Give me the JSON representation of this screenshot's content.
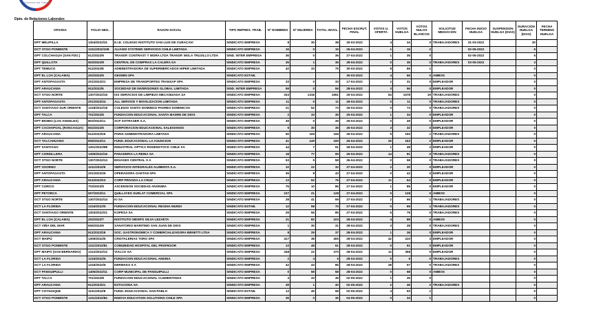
{
  "header": {
    "logo_text": "Dirección del Trabajo",
    "department": "Dpto. de Relaciones Laborales",
    "logo_colors": {
      "blue": "#2a4a9a",
      "red": "#d52b1e"
    }
  },
  "table": {
    "columns": [
      "OFICINA",
      "FOLIO NEG.",
      "RAZON SOCIAL",
      "TIPO REPRES. TRAB.",
      "Nº HOMBRES",
      "Nº MUJERES",
      "TOTAL INVOL.",
      "FECHA ESCRUT. FINAL",
      "VOTOS U. OFERTA",
      "VOTOS HUELGA",
      "VOTOS NULOS BLANCOS",
      "SOLICITUD MEDIACION",
      "FECHA INICIO HUELGA",
      "SUSPENSION HUELGA (DIAS)",
      "DURACION HUELGA (DIAS)",
      "FECHA TERMINO HUELGA"
    ],
    "rows": [
      [
        "DPT MELIPILLA",
        "1304/2022/31",
        "E.I.E. COLEGIO INSTITUTO SAN LUIS DE CURACAVI",
        "SINDICATO EMPRESA",
        "8",
        "30",
        "38",
        "30-03-2022",
        "4",
        "34",
        "0",
        "TRABAJADORES",
        "31-03-2022",
        "",
        "30",
        ""
      ],
      [
        "DCT STGO PONIENTE",
        "1311/2022/108",
        "ALIANSI SYSTEMS SERVICIOS CHILE LIMITADA",
        "SINDICATO EMPRESA",
        "16",
        "0",
        "16",
        "26-04-2022",
        "1",
        "15",
        "2",
        "",
        "02-05-2022",
        "",
        "6",
        ""
      ],
      [
        "DPT COLCHAGUA (SAN FDO.)",
        "612/2022/6",
        "TRANSP. CONTRAST Y MORA LTDA TRANSP. MOLA TRUJILLO LTDA",
        "SIND. INTER EMPRESA",
        "36",
        "0",
        "36",
        "27-04-2022",
        "1",
        "35",
        "0",
        "",
        "02-05-2022",
        "",
        "6",
        ""
      ],
      [
        "DPT QUILLOTA",
        "503/2022/8",
        "CENTRAL DE COMPRAS LA CALERA SA",
        "SINDICATO EMPRESA",
        "35",
        "1",
        "36",
        "28-04-2022",
        "0",
        "36",
        "0",
        "TRABAJADORES",
        "03-05-2022",
        "",
        "3",
        ""
      ],
      [
        "DPT TEMUCO",
        "911/2022/8",
        "ADMINISTRADORA DE SUPERMERCADOS HIPER LIMITADA",
        "SINDICATO EMPRESA",
        "42",
        "33",
        "75",
        "30-03-2022",
        "8",
        "66",
        "1",
        "",
        "",
        "",
        "0",
        ""
      ],
      [
        "DPT EL LOA (CALAMA)",
        "202/2022/6",
        "GEOMIN SPA",
        "SINDICATO ESTAB.",
        "",
        "",
        "",
        "30-03-2022",
        "4",
        "66",
        "0",
        "AMBOS",
        "",
        "",
        "0",
        ""
      ],
      [
        "DPT ANTOFAGASTA",
        "201/2022/21",
        "EMPRESA DE TRANSPORTES TRANSAP SPA",
        "SINDICATO EMPRESA",
        "33",
        "0",
        "33",
        "17-04-2022",
        "2",
        "31",
        "0",
        "EMPLEADOR",
        "",
        "",
        "0",
        ""
      ],
      [
        "DPT ARAUCANIA",
        "911/2022/6",
        "SOCIEDAD DE INVERSIONES GLOBAL LIMITADA",
        "SIND. INTER EMPRESA",
        "59",
        "0",
        "59",
        "28-04-2022",
        "3",
        "56",
        "0",
        "EMPLEADOR",
        "",
        "",
        "0",
        ""
      ],
      [
        "DCT STGO NORTE",
        "1307/2022/15",
        "ISS SERVICIOS DE LIMPIEZA MECANIZADA SA",
        "SINDICATO EMPRESA",
        "333",
        "1318",
        "1651",
        "25-04-2022",
        "54",
        "1578",
        "19",
        "TRABAJADORES",
        "",
        "",
        "0",
        ""
      ],
      [
        "DPT ANTOFAGASTA",
        "201/2022/24",
        "ALL SERVICE Y MOVILIZACION LIMITADA",
        "SINDICATO EMPRESA",
        "11",
        "0",
        "11",
        "26-04-2022",
        "0",
        "11",
        "0",
        "TRABAJADORES",
        "",
        "",
        "0",
        ""
      ],
      [
        "DCT SANTIAGO SUR ORIENTE",
        "1318/2022/18",
        "COLEGIO SANTO DOMINGO PADRES DOMINICOS",
        "SINDICATO EMPRESA",
        "21",
        "52",
        "73",
        "26-04-2022",
        "0",
        "73",
        "0",
        "TRABAJADORES",
        "",
        "",
        "0",
        ""
      ],
      [
        "DPT TALCA",
        "701/2022/6",
        "FUNDACION EDUCACIONAL SANTA MADRE DE DIOS",
        "SINDICATO EMPRESA",
        "2",
        "33",
        "35",
        "25-04-2022",
        "1",
        "34",
        "0",
        "EMPLEADOR",
        "",
        "",
        "0",
        ""
      ],
      [
        "DPT BIOBIO (LOS ANGELES)",
        "803/2022/11",
        "SCP SOTRASER S.A.",
        "SINDICATO EMPRESA",
        "49",
        "0",
        "49",
        "25-04-2022",
        "0",
        "49",
        "0",
        "EMPLEADOR",
        "",
        "",
        "0",
        ""
      ],
      [
        "DPT CACHAPOAL (RANCAGUA)",
        "602/2022/6",
        "CORPORACION EDUCACIONAL SALESIANOS",
        "SINDICATO EMPRESA",
        "5",
        "30",
        "35",
        "26-04-2022",
        "3",
        "32",
        "0",
        "EMPLEADOR",
        "",
        "",
        "0",
        ""
      ],
      [
        "DPT ARAUCANIA",
        "911/2022/25",
        "PARIS ADMINISTRADORA LIMITADA",
        "SINDICATO EMPRESA",
        "50",
        "106",
        "156",
        "26-04-2022",
        "5",
        "150",
        "1",
        "TRABAJADORES",
        "",
        "",
        "0",
        ""
      ],
      [
        "DCT TALCAHUANO",
        "805/2022/11",
        "FUND. EDUCACIONAL LA ASUNCION",
        "SINDICATO EMPRESA",
        "41",
        "149",
        "190",
        "26-04-2022",
        "26",
        "162",
        "2",
        "EMPLEADOR",
        "",
        "",
        "0",
        ""
      ],
      [
        "DPT SANTIAGO",
        "1301/2022/88",
        "INDUSTRIAL OPTICA RODENSTOCK CHILE SA",
        "SINDICATO EMPRESA",
        "44",
        "7",
        "51",
        "26-04-2022",
        "1",
        "48",
        "2",
        "EMPLEADOR",
        "",
        "",
        "0",
        ""
      ],
      [
        "DPT CORDILLERA",
        "1305/2022/16",
        "PANADERIA LA REINA SA",
        "SINDICATO EMPRESA",
        "18",
        "77",
        "95",
        "26-04-2022",
        "14",
        "81",
        "0",
        "TRABAJADORES",
        "",
        "",
        "0",
        ""
      ],
      [
        "DCT STGO NORTE",
        "1307/2022/13",
        "ENVASES CENTRAL S A",
        "SINDICATO EMPRESA",
        "53",
        "5",
        "58",
        "26-04-2022",
        "0",
        "58",
        "0",
        "TRABAJADORES",
        "",
        "",
        "0",
        ""
      ],
      [
        "DPT OSORNO",
        "1011/2022/6",
        "SERVICIOS INTEGRALES ALIMENTA S.A.",
        "SINDICATO EMPRESA",
        "10",
        "22",
        "32",
        "27-04-2022",
        "2",
        "30",
        "0",
        "EMPLEADOR",
        "",
        "",
        "0",
        ""
      ],
      [
        "DPT ANTOFAGASTA",
        "201/2022/26",
        "OPERADORA GAETAN SPA",
        "SINDICATO EMPRESA",
        "35",
        "8",
        "43",
        "27-04-2022",
        "0",
        "43",
        "0",
        "EMPLEADOR",
        "",
        "",
        "0",
        ""
      ],
      [
        "DPT ARAUCANIA",
        "911/2022/23",
        "CORP PRIVADA LA CRUZ",
        "SINDICATO EMPRESA",
        "13",
        "62",
        "75",
        "27-04-2022",
        "11",
        "64",
        "0",
        "EMPLEADOR",
        "",
        "",
        "0",
        ""
      ],
      [
        "DPT CURICO",
        "703/2022/5",
        "ASCENSION SOCIEDAD ANONIMA",
        "SINDICATO EMPRESA",
        "76",
        "10",
        "86",
        "27-04-2022",
        "1",
        "85",
        "0",
        "EMPLEADOR",
        "",
        "",
        "0",
        ""
      ],
      [
        "DPT PETORCA",
        "507/2022/11",
        "QUILLAYES SURLAT COMERCIAL SPA",
        "SINDICATO EMPRESA",
        "107",
        "21",
        "128",
        "27-04-2022",
        "0",
        "128",
        "0",
        "AMBOS",
        "",
        "",
        "0",
        ""
      ],
      [
        "DCT STGO NORTE",
        "1307/2022/14",
        "KI SA",
        "SINDICATO EMPRESA",
        "28",
        "41",
        "69",
        "27-04-2022",
        "2",
        "66",
        "1",
        "TRABAJADORES",
        "",
        "",
        "0",
        ""
      ],
      [
        "DCT LA FLORIDA",
        "1316/2022/5",
        "FUNDACION EDUCACIONAL REGINA MUNDI",
        "SINDICATO ESTAB.",
        "12",
        "58",
        "70",
        "27-04-2022",
        "0",
        "69",
        "1",
        "TRABAJADORES",
        "",
        "",
        "0",
        ""
      ],
      [
        "DCT SANTIAGO ORIENTE",
        "1303/2022/21",
        "KOPESA SA",
        "SINDICATO EMPRESA",
        "29",
        "56",
        "85",
        "27-04-2022",
        "6",
        "79",
        "0",
        "TRABAJADORES",
        "",
        "",
        "0",
        ""
      ],
      [
        "DPT EL LOA (CALAMA)",
        "202/2022/7",
        "INSTITUTO OBISPO SILVA LEZAETA",
        "SINDICATO EMPRESA",
        "21",
        "82",
        "103",
        "28-04-2022",
        "4",
        "88",
        "0",
        "AMBOS",
        "",
        "",
        "0",
        ""
      ],
      [
        "DCT VIÑA DEL MAR",
        "506/2022/6",
        "SANATORIO MARITIMO SAN JUAN DE DIOS",
        "SINDICATO EMPRESA",
        "1",
        "30",
        "31",
        "28-04-2022",
        "3",
        "28",
        "0",
        "TRABAJADORES",
        "",
        "",
        "0",
        ""
      ],
      [
        "DPT ARAUCANIA",
        "911/2022/28",
        "SOC. GASTRONOMICA Y COMERCIALIZADORA BENETTI LTDA",
        "SINDICATO EMPRESA",
        "8",
        "29",
        "37",
        "28-04-2022",
        "1",
        "36",
        "0",
        "EMPLEADOR",
        "",
        "",
        "0",
        ""
      ],
      [
        "DCT MAIPÚ",
        "1309/2022/6",
        "CRISTALERIAS TORO SPA",
        "SINDICATO EMPRESA",
        "417",
        "38",
        "455",
        "28-04-2022",
        "42",
        "410",
        "3",
        "EMPLEADOR",
        "",
        "",
        "0",
        ""
      ],
      [
        "DCT STGO PONIENTE",
        "1311/2022/81",
        "COMUNIDAD HOSPITAL DEL PROFESOR",
        "SINDICATO EMPRESA",
        "13",
        "48",
        "61",
        "28-04-2022",
        "0",
        "61",
        "0",
        "EMPLEADOR",
        "",
        "",
        "0",
        ""
      ],
      [
        "DPT MAIPO (SAN BERNARDO)",
        "1312/2022/12",
        "VIALCO SA",
        "SINDICATO EMPRESA",
        "348",
        "22",
        "370",
        "28-04-2022",
        "12",
        "358",
        "0",
        "EMPLEADOR",
        "",
        "",
        "0",
        ""
      ],
      [
        "DCT LA FLORIDA",
        "1316/2022/6",
        "FUNDACION EDUCACIONAL ANDINA",
        "SINDICATO EMPRESA",
        "2",
        "4",
        "6",
        "28-04-2022",
        "0",
        "6",
        "0",
        "TRABAJADORES",
        "",
        "",
        "0",
        ""
      ],
      [
        "DCT LA FLORIDA",
        "1316/2022/6",
        "DERMAKS S A",
        "SINDICATO EMPRESA",
        "42",
        "43",
        "85",
        "28-04-2022",
        "28",
        "57",
        "0",
        "TRABAJADORES",
        "",
        "",
        "0",
        ""
      ],
      [
        "DCT PANGUIPULLI",
        "1405/2022/11",
        "CORP MUNICIPAL DE PANGUIPULLI",
        "SINDICATO EMPRESA",
        "0",
        "58",
        "58",
        "28-04-2022",
        "0",
        "58",
        "0",
        "AMBOS",
        "",
        "",
        "0",
        ""
      ],
      [
        "DPT TALCA",
        "701/2022/8",
        "FUNDACION EDUCACIONAL CLEMENTINOS",
        "SINDICATO EMPRESA",
        "3",
        "33",
        "36",
        "02-05-2022",
        "1",
        "35",
        "0",
        "",
        "",
        "",
        "0",
        ""
      ],
      [
        "DPT ARAUCANIA",
        "911/2022/31",
        "ESTACIONA SA",
        "SINDICATO EMPRESA",
        "39",
        "1",
        "40",
        "02-05-2022",
        "2",
        "36",
        "2",
        "TRABAJADORES",
        "",
        "",
        "0",
        ""
      ],
      [
        "DPT COYHAIQUE",
        "1101/2022/8",
        "FUND. EDUCACIONAL SAN PABLO",
        "SINDICATO ESTAB.",
        "13",
        "45",
        "58",
        "02-05-2022",
        "4",
        "53",
        "1",
        "",
        "",
        "",
        "0",
        ""
      ],
      [
        "DCT STGO PONIENTE",
        "1311/2022/84",
        "INNOVA EDUCATION SOLUTIONS CHILE SPA",
        "SINDICATO EMPRESA",
        "35",
        "0",
        "35",
        "04-05-2022",
        "0",
        "34",
        "1",
        "",
        "",
        "",
        "0",
        ""
      ]
    ]
  }
}
